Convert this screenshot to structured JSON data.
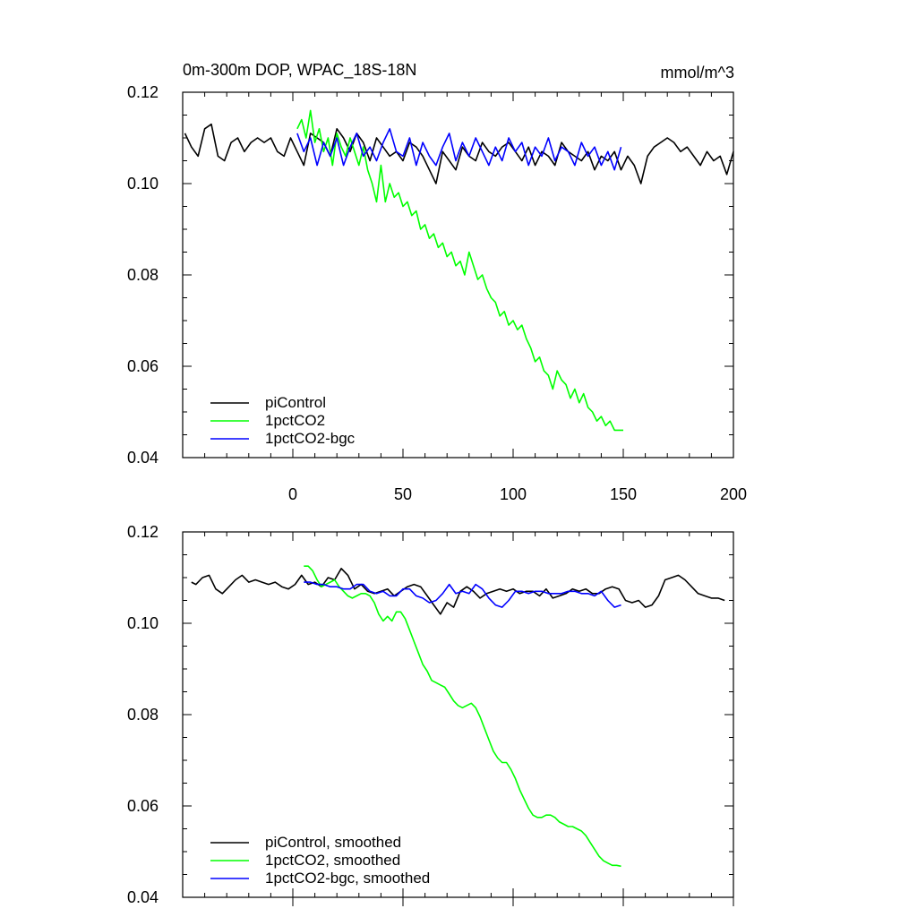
{
  "chart_data": [
    {
      "type": "line",
      "panel": "top",
      "title_left": "0m-300m DOP, WPAC_18S-18N",
      "title_right": "mmol/m^3",
      "xlabel": "",
      "ylabel": "",
      "xlim": [
        -50,
        200
      ],
      "ylim": [
        0.04,
        0.12
      ],
      "x_tick_values": [
        0,
        50,
        100,
        150,
        200
      ],
      "x_tick_labels": [
        "0",
        "50",
        "100",
        "150",
        "200"
      ],
      "y_tick_values": [
        0.04,
        0.06,
        0.08,
        0.1,
        0.12
      ],
      "y_tick_labels": [
        "0.04",
        "0.06",
        "0.08",
        "0.10",
        "0.12"
      ],
      "legend_position": "bottom-left",
      "series": [
        {
          "name": "piControl",
          "color": "#000000",
          "x": [
            -49,
            -46,
            -43,
            -40,
            -37,
            -34,
            -31,
            -28,
            -25,
            -22,
            -19,
            -16,
            -13,
            -10,
            -7,
            -4,
            -1,
            2,
            5,
            8,
            11,
            14,
            17,
            20,
            23,
            26,
            29,
            32,
            35,
            38,
            41,
            44,
            47,
            50,
            53,
            56,
            59,
            62,
            65,
            68,
            71,
            74,
            77,
            80,
            83,
            86,
            89,
            92,
            95,
            98,
            101,
            104,
            107,
            110,
            113,
            116,
            119,
            122,
            125,
            128,
            131,
            134,
            137,
            140,
            143,
            146,
            149,
            152,
            155,
            158,
            161,
            164,
            167,
            170,
            173,
            176,
            179,
            182,
            185,
            188,
            191,
            194,
            197,
            200
          ],
          "values": [
            0.111,
            0.108,
            0.106,
            0.112,
            0.113,
            0.106,
            0.105,
            0.109,
            0.11,
            0.107,
            0.109,
            0.11,
            0.109,
            0.11,
            0.107,
            0.106,
            0.11,
            0.107,
            0.104,
            0.111,
            0.11,
            0.109,
            0.106,
            0.112,
            0.11,
            0.107,
            0.111,
            0.109,
            0.105,
            0.11,
            0.108,
            0.106,
            0.107,
            0.105,
            0.109,
            0.108,
            0.106,
            0.103,
            0.1,
            0.107,
            0.105,
            0.103,
            0.108,
            0.106,
            0.105,
            0.109,
            0.107,
            0.106,
            0.108,
            0.109,
            0.107,
            0.105,
            0.108,
            0.104,
            0.107,
            0.106,
            0.104,
            0.109,
            0.107,
            0.106,
            0.105,
            0.107,
            0.103,
            0.106,
            0.105,
            0.107,
            0.103,
            0.106,
            0.104,
            0.1,
            0.106,
            0.108,
            0.109,
            0.11,
            0.109,
            0.107,
            0.108,
            0.106,
            0.104,
            0.107,
            0.105,
            0.106,
            0.102,
            0.107
          ]
        },
        {
          "name": "1pctCO2",
          "color": "#00ff00",
          "x": [
            2,
            4,
            6,
            8,
            10,
            12,
            14,
            16,
            18,
            20,
            22,
            24,
            26,
            28,
            30,
            32,
            34,
            36,
            38,
            40,
            42,
            44,
            46,
            48,
            50,
            52,
            54,
            56,
            58,
            60,
            62,
            64,
            66,
            68,
            70,
            72,
            74,
            76,
            78,
            80,
            82,
            84,
            86,
            88,
            90,
            92,
            94,
            96,
            98,
            100,
            102,
            104,
            106,
            108,
            110,
            112,
            114,
            116,
            118,
            120,
            122,
            124,
            126,
            128,
            130,
            132,
            134,
            136,
            138,
            140,
            142,
            144,
            146,
            148,
            150
          ],
          "values": [
            0.112,
            0.114,
            0.11,
            0.116,
            0.109,
            0.112,
            0.107,
            0.11,
            0.104,
            0.111,
            0.108,
            0.106,
            0.11,
            0.107,
            0.104,
            0.108,
            0.103,
            0.1,
            0.096,
            0.104,
            0.096,
            0.1,
            0.097,
            0.098,
            0.095,
            0.096,
            0.093,
            0.094,
            0.09,
            0.091,
            0.088,
            0.089,
            0.086,
            0.087,
            0.084,
            0.085,
            0.082,
            0.083,
            0.08,
            0.085,
            0.082,
            0.079,
            0.08,
            0.077,
            0.075,
            0.074,
            0.071,
            0.072,
            0.069,
            0.07,
            0.068,
            0.069,
            0.066,
            0.064,
            0.061,
            0.062,
            0.059,
            0.058,
            0.055,
            0.059,
            0.057,
            0.056,
            0.053,
            0.055,
            0.052,
            0.054,
            0.051,
            0.05,
            0.048,
            0.049,
            0.047,
            0.048,
            0.046,
            0.046,
            0.046
          ]
        },
        {
          "name": "1pctCO2-bgc",
          "color": "#0000ff",
          "x": [
            2,
            5,
            8,
            11,
            14,
            17,
            20,
            23,
            26,
            29,
            32,
            35,
            38,
            41,
            44,
            47,
            50,
            53,
            56,
            59,
            62,
            65,
            68,
            71,
            74,
            77,
            80,
            83,
            86,
            89,
            92,
            95,
            98,
            101,
            104,
            107,
            110,
            113,
            116,
            119,
            122,
            125,
            128,
            131,
            134,
            137,
            140,
            143,
            146,
            149
          ],
          "values": [
            0.111,
            0.107,
            0.11,
            0.104,
            0.109,
            0.106,
            0.11,
            0.104,
            0.108,
            0.111,
            0.106,
            0.108,
            0.105,
            0.109,
            0.112,
            0.107,
            0.106,
            0.11,
            0.104,
            0.109,
            0.106,
            0.104,
            0.108,
            0.111,
            0.105,
            0.109,
            0.106,
            0.11,
            0.107,
            0.104,
            0.108,
            0.105,
            0.11,
            0.107,
            0.109,
            0.104,
            0.108,
            0.106,
            0.11,
            0.105,
            0.108,
            0.107,
            0.104,
            0.109,
            0.106,
            0.108,
            0.104,
            0.107,
            0.103,
            0.108
          ]
        }
      ]
    },
    {
      "type": "line",
      "panel": "bottom",
      "xlabel": "",
      "ylabel": "",
      "xlim": [
        -50,
        200
      ],
      "ylim": [
        0.04,
        0.12
      ],
      "y_tick_values": [
        0.04,
        0.06,
        0.08,
        0.1,
        0.12
      ],
      "y_tick_labels": [
        "0.04",
        "0.06",
        "0.08",
        "0.10",
        "0.12"
      ],
      "legend_position": "bottom-left",
      "series": [
        {
          "name": "piControl, smoothed",
          "color": "#000000",
          "x": [
            -46,
            -44,
            -41,
            -38,
            -35,
            -32,
            -29,
            -26,
            -23,
            -20,
            -17,
            -14,
            -11,
            -8,
            -5,
            -2,
            1,
            4,
            7,
            10,
            13,
            16,
            19,
            22,
            25,
            28,
            31,
            34,
            37,
            40,
            43,
            46,
            49,
            52,
            55,
            58,
            61,
            64,
            67,
            70,
            73,
            76,
            79,
            82,
            85,
            88,
            91,
            94,
            97,
            100,
            103,
            106,
            109,
            112,
            115,
            118,
            121,
            124,
            127,
            130,
            133,
            136,
            139,
            142,
            145,
            148,
            151,
            154,
            157,
            160,
            163,
            166,
            169,
            172,
            175,
            178,
            181,
            184,
            187,
            190,
            193,
            196
          ],
          "values": [
            0.109,
            0.1085,
            0.11,
            0.1105,
            0.1075,
            0.1065,
            0.108,
            0.1095,
            0.1105,
            0.109,
            0.1095,
            0.109,
            0.1085,
            0.109,
            0.108,
            0.1075,
            0.1085,
            0.1105,
            0.1085,
            0.109,
            0.108,
            0.11,
            0.1095,
            0.112,
            0.1105,
            0.1075,
            0.1085,
            0.107,
            0.1065,
            0.107,
            0.1075,
            0.106,
            0.107,
            0.108,
            0.1085,
            0.108,
            0.106,
            0.104,
            0.102,
            0.1045,
            0.1035,
            0.107,
            0.108,
            0.107,
            0.1055,
            0.1065,
            0.107,
            0.1075,
            0.107,
            0.1075,
            0.1065,
            0.107,
            0.107,
            0.106,
            0.1075,
            0.1055,
            0.106,
            0.1065,
            0.1075,
            0.107,
            0.1075,
            0.1065,
            0.1065,
            0.1075,
            0.108,
            0.1075,
            0.105,
            0.1045,
            0.105,
            0.1035,
            0.104,
            0.106,
            0.1095,
            0.11,
            0.1105,
            0.1095,
            0.108,
            0.1065,
            0.106,
            0.1055,
            0.1055,
            0.105
          ]
        },
        {
          "name": "1pctCO2, smoothed",
          "color": "#00ff00",
          "x": [
            5,
            7,
            9,
            11,
            13,
            15,
            17,
            19,
            21,
            23,
            25,
            27,
            29,
            31,
            33,
            35,
            37,
            39,
            41,
            43,
            45,
            47,
            49,
            51,
            53,
            55,
            57,
            59,
            61,
            63,
            65,
            67,
            69,
            71,
            73,
            75,
            77,
            79,
            81,
            83,
            85,
            87,
            89,
            91,
            93,
            95,
            97,
            99,
            101,
            103,
            105,
            107,
            109,
            111,
            113,
            115,
            117,
            119,
            121,
            123,
            125,
            127,
            129,
            131,
            133,
            135,
            137,
            139,
            141,
            143,
            145,
            147,
            149
          ],
          "values": [
            0.1125,
            0.1125,
            0.1115,
            0.1095,
            0.108,
            0.1085,
            0.109,
            0.1095,
            0.108,
            0.107,
            0.106,
            0.1055,
            0.106,
            0.1065,
            0.1065,
            0.106,
            0.1045,
            0.102,
            0.1005,
            0.1015,
            0.1005,
            0.1025,
            0.1025,
            0.101,
            0.0985,
            0.096,
            0.0935,
            0.091,
            0.0895,
            0.0875,
            0.087,
            0.0865,
            0.086,
            0.0845,
            0.083,
            0.082,
            0.0815,
            0.082,
            0.0825,
            0.0815,
            0.0795,
            0.077,
            0.0745,
            0.072,
            0.0705,
            0.0695,
            0.0695,
            0.068,
            0.066,
            0.0635,
            0.0615,
            0.0595,
            0.058,
            0.0575,
            0.0575,
            0.058,
            0.058,
            0.0575,
            0.0565,
            0.056,
            0.0555,
            0.0555,
            0.055,
            0.0545,
            0.0535,
            0.052,
            0.0505,
            0.049,
            0.048,
            0.0475,
            0.047,
            0.047,
            0.0468
          ]
        },
        {
          "name": "1pctCO2-bgc, smoothed",
          "color": "#0000ff",
          "x": [
            5,
            8,
            11,
            14,
            17,
            20,
            23,
            26,
            29,
            32,
            35,
            38,
            41,
            44,
            47,
            50,
            53,
            56,
            59,
            62,
            65,
            68,
            71,
            74,
            77,
            80,
            83,
            86,
            89,
            92,
            95,
            98,
            101,
            104,
            107,
            110,
            113,
            116,
            119,
            122,
            125,
            128,
            131,
            134,
            137,
            140,
            143,
            146,
            149
          ],
          "values": [
            0.109,
            0.109,
            0.1085,
            0.1085,
            0.108,
            0.108,
            0.1075,
            0.1075,
            0.1085,
            0.1085,
            0.107,
            0.1065,
            0.107,
            0.106,
            0.106,
            0.1075,
            0.1075,
            0.106,
            0.1055,
            0.1045,
            0.105,
            0.1065,
            0.1085,
            0.1065,
            0.107,
            0.1065,
            0.1085,
            0.1075,
            0.1055,
            0.104,
            0.1035,
            0.105,
            0.107,
            0.107,
            0.1065,
            0.107,
            0.107,
            0.1065,
            0.1065,
            0.1065,
            0.107,
            0.107,
            0.1065,
            0.1065,
            0.106,
            0.107,
            0.105,
            0.1035,
            0.104
          ]
        }
      ]
    }
  ]
}
